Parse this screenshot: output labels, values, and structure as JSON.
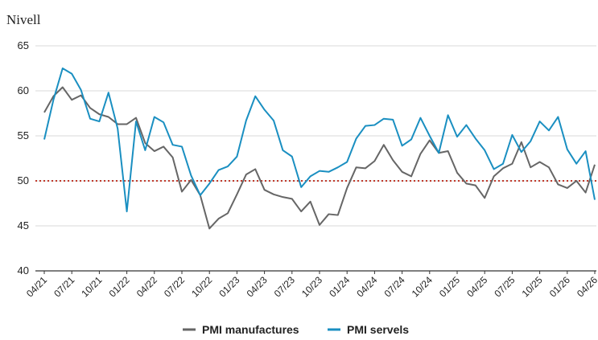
{
  "chart_data": {
    "type": "line",
    "title": "",
    "xlabel": "",
    "ylabel": "Nivell",
    "ylim": [
      40,
      65
    ],
    "yticks": [
      40,
      45,
      50,
      55,
      60,
      65
    ],
    "grid": true,
    "legend_position": "bottom",
    "x_tick_labels": [
      "04/21",
      "07/21",
      "10/21",
      "01/22",
      "04/22",
      "07/22",
      "10/22",
      "01/23",
      "04/23",
      "07/23",
      "10/23",
      "01/24",
      "04/24",
      "07/24",
      "10/24",
      "01/25",
      "04/25",
      "07/25",
      "10/25",
      "01/26",
      "04/26"
    ],
    "x": [
      "04/21",
      "05/21",
      "06/21",
      "07/21",
      "08/21",
      "09/21",
      "10/21",
      "11/21",
      "12/21",
      "01/22",
      "02/22",
      "03/22",
      "04/22",
      "05/22",
      "06/22",
      "07/22",
      "08/22",
      "09/22",
      "10/22",
      "11/22",
      "12/22",
      "01/23",
      "02/23",
      "03/23",
      "04/23",
      "05/23",
      "06/23",
      "07/23",
      "08/23",
      "09/23",
      "10/23",
      "11/23",
      "12/23",
      "01/24",
      "02/24",
      "03/24",
      "04/24",
      "05/24",
      "06/24",
      "07/24",
      "08/24",
      "09/24",
      "10/24",
      "11/24",
      "12/24",
      "01/25",
      "02/25",
      "03/25",
      "04/25",
      "05/25",
      "06/25",
      "07/25",
      "08/25",
      "09/25",
      "10/25",
      "11/25",
      "12/25",
      "01/26",
      "02/26",
      "03/26",
      "04/26"
    ],
    "reference_line": {
      "y": 50,
      "color": "#c0392b",
      "style": "dotted"
    },
    "series": [
      {
        "name": "PMI manufactures",
        "color": "#666666",
        "values": [
          57.6,
          59.4,
          60.4,
          59.0,
          59.5,
          58.1,
          57.4,
          57.1,
          56.3,
          56.3,
          57.0,
          54.2,
          53.3,
          53.8,
          52.6,
          48.8,
          50.1,
          48.4,
          44.7,
          45.8,
          46.4,
          48.5,
          50.7,
          51.3,
          49.0,
          48.5,
          48.2,
          48.0,
          46.6,
          47.7,
          45.1,
          46.3,
          46.2,
          49.2,
          51.5,
          51.4,
          52.2,
          54.0,
          52.3,
          51.0,
          50.5,
          53.0,
          54.5,
          53.1,
          53.3,
          50.9,
          49.7,
          49.5,
          48.1,
          50.5,
          51.4,
          51.9,
          54.3,
          51.5,
          52.1,
          51.5,
          49.6,
          49.2,
          50.0,
          48.7,
          51.8
        ]
      },
      {
        "name": "PMI servels",
        "color": "#1a8fc1",
        "values": [
          54.6,
          59.0,
          62.5,
          61.9,
          60.1,
          56.9,
          56.6,
          59.8,
          55.8,
          46.6,
          56.6,
          53.4,
          57.1,
          56.5,
          54.0,
          53.8,
          50.6,
          48.4,
          49.7,
          51.2,
          51.6,
          52.7,
          56.7,
          59.4,
          57.9,
          56.7,
          53.4,
          52.7,
          49.3,
          50.5,
          51.1,
          51.0,
          51.5,
          52.1,
          54.7,
          56.1,
          56.2,
          56.9,
          56.8,
          53.9,
          54.6,
          57.0,
          55.0,
          53.1,
          57.3,
          54.9,
          56.2,
          54.7,
          53.4,
          51.3,
          51.9,
          55.1,
          53.2,
          54.4,
          56.6,
          55.6,
          57.1,
          53.5,
          51.9,
          53.3,
          47.9
        ]
      }
    ]
  }
}
